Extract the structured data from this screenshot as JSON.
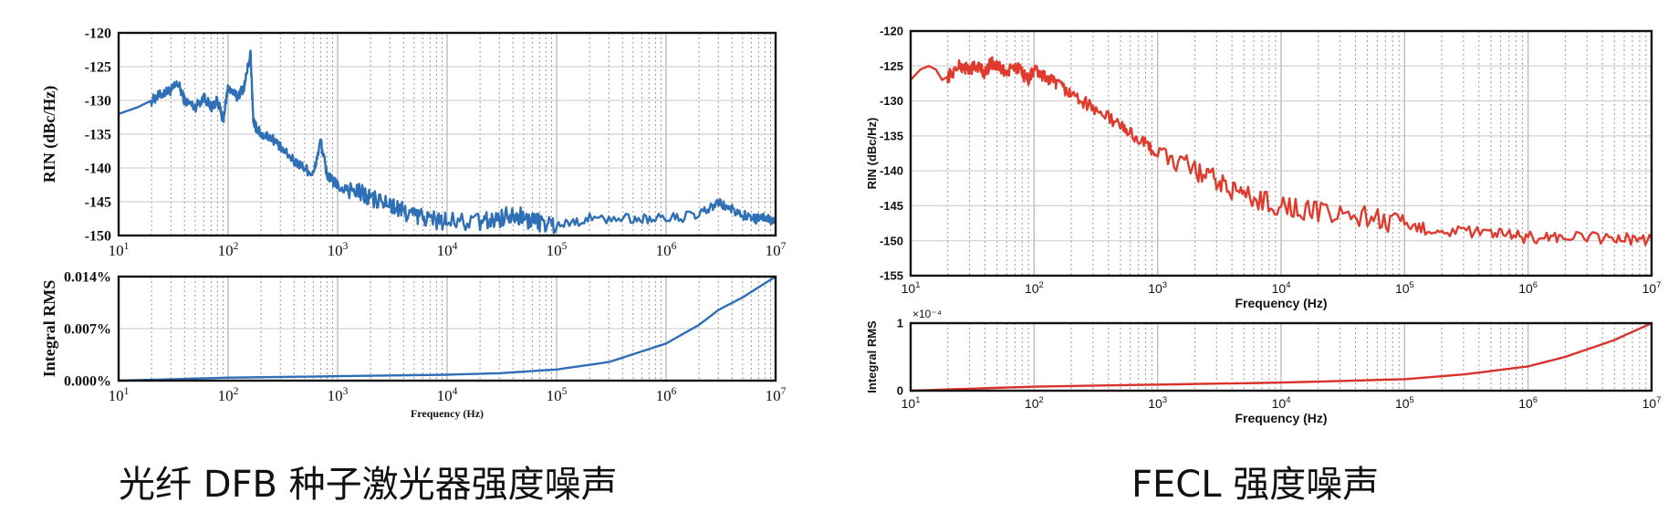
{
  "captions": {
    "left": "光纤 DFB 种子激光器强度噪声",
    "right": "FECL 强度噪声"
  },
  "chart_data": [
    {
      "id": "dfb-rin",
      "type": "line",
      "xscale": "log",
      "xlim": [
        10,
        10000000
      ],
      "ylim": [
        -150,
        -120
      ],
      "yticks": [
        -120,
        -125,
        -130,
        -135,
        -140,
        -145,
        -150
      ],
      "xlabel": "",
      "ylabel": "RIN (dBc/Hz)",
      "grid": true,
      "color": "#2e6fb5",
      "series": [
        {
          "x": [
            10,
            15,
            20,
            25,
            30,
            35,
            40,
            50,
            60,
            70,
            80,
            90,
            100,
            120,
            140,
            160,
            170,
            180,
            200,
            250,
            300,
            400,
            500,
            600,
            700,
            800,
            900,
            1000,
            1500,
            2000,
            3000,
            4000,
            5000,
            7000,
            10000,
            20000,
            30000,
            40000,
            50000,
            70000,
            100000,
            200000,
            500000,
            1000000,
            2000000,
            3000000,
            4000000,
            6000000,
            8000000,
            10000000
          ],
          "y": [
            -132,
            -131,
            -130,
            -129,
            -128.5,
            -127.5,
            -130,
            -131,
            -129.5,
            -131,
            -130,
            -133,
            -128,
            -129.5,
            -128,
            -123,
            -133,
            -134,
            -135,
            -135.5,
            -137,
            -139,
            -140,
            -141,
            -136,
            -141,
            -142,
            -142.5,
            -143.5,
            -144.5,
            -145.5,
            -146.5,
            -147,
            -147.5,
            -148,
            -148,
            -147.5,
            -146.5,
            -147.5,
            -148,
            -148.5,
            -147.5,
            -147.5,
            -147.5,
            -147,
            -145.2,
            -146.2,
            -147.5,
            -147.5,
            -148
          ]
        }
      ]
    },
    {
      "id": "dfb-integral",
      "type": "line",
      "xscale": "log",
      "xlim": [
        10,
        10000000
      ],
      "ylim": [
        0,
        0.014
      ],
      "yticks": [
        0,
        0.007,
        0.014
      ],
      "ytick_labels": [
        "0.000%",
        "0.007%",
        "0.014%"
      ],
      "xlabel": "Frequency (Hz)",
      "ylabel": "Integral RMS",
      "grid": true,
      "color": "#2e6fb5",
      "series": [
        {
          "x": [
            10,
            100,
            1000,
            10000,
            30000,
            100000,
            300000,
            1000000,
            2000000,
            3000000,
            5000000,
            10000000
          ],
          "y": [
            0,
            0.0004,
            0.0006,
            0.0008,
            0.001,
            0.0015,
            0.0025,
            0.005,
            0.0075,
            0.0095,
            0.0112,
            0.014
          ]
        }
      ]
    },
    {
      "id": "fecl-rin",
      "type": "line",
      "xscale": "log",
      "xlim": [
        10,
        10000000
      ],
      "ylim": [
        -155,
        -120
      ],
      "yticks": [
        -120,
        -125,
        -130,
        -135,
        -140,
        -145,
        -150,
        -155
      ],
      "xlabel": "Frequency (Hz)",
      "ylabel": "RIN (dBc/Hz)",
      "grid": true,
      "color": "#e03a2c",
      "series": [
        {
          "x": [
            10,
            12,
            14,
            16,
            18,
            20,
            25,
            30,
            35,
            40,
            45,
            50,
            60,
            70,
            80,
            90,
            100,
            120,
            150,
            200,
            300,
            500,
            700,
            1000,
            2000,
            3000,
            5000,
            10000,
            20000,
            50000,
            100000,
            200000,
            500000,
            1000000,
            2000000,
            5000000,
            10000000
          ],
          "y": [
            -127,
            -125.5,
            -125,
            -125.5,
            -127,
            -126.5,
            -125,
            -125.5,
            -125,
            -126,
            -124.5,
            -125,
            -126,
            -125,
            -126,
            -127,
            -125.5,
            -126.5,
            -127.5,
            -129,
            -131,
            -133.5,
            -135.5,
            -137.5,
            -140,
            -141.5,
            -143.5,
            -145,
            -146,
            -146.5,
            -148,
            -148.5,
            -149,
            -149.5,
            -149.5,
            -149.7,
            -149.8
          ]
        }
      ]
    },
    {
      "id": "fecl-integral",
      "type": "line",
      "xscale": "log",
      "xlim": [
        10,
        10000000
      ],
      "ylim": [
        0,
        1
      ],
      "yticks": [
        0,
        1
      ],
      "ytick_labels": [
        "0",
        "1"
      ],
      "multiplier": "×10⁻⁴",
      "xlabel": "Frequency (Hz)",
      "ylabel": "Integral RMS",
      "grid": true,
      "color": "#d8322a",
      "series": [
        {
          "x": [
            10,
            100,
            1000,
            10000,
            100000,
            300000,
            1000000,
            2000000,
            5000000,
            10000000
          ],
          "y": [
            0,
            0.06,
            0.09,
            0.12,
            0.17,
            0.24,
            0.36,
            0.5,
            0.75,
            1.0
          ]
        }
      ]
    }
  ]
}
